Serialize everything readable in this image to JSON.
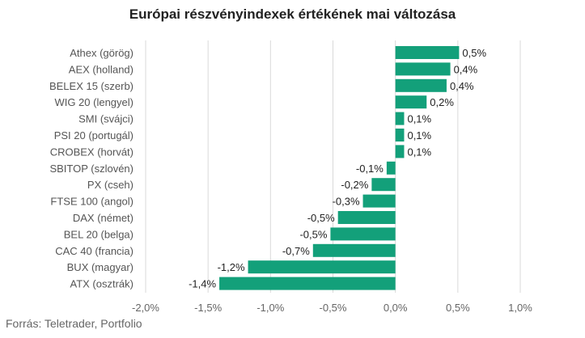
{
  "chart_data": {
    "type": "bar",
    "orientation": "horizontal",
    "title": "Európai részvényindexek értékének mai változása",
    "source": "Forrás: Teletrader, Portfolio",
    "categories": [
      "Athex (görög)",
      "AEX (holland)",
      "BELEX 15 (szerb)",
      "WIG 20 (lengyel)",
      "SMI (svájci)",
      "PSI 20 (portugál)",
      "CROBEX (horvát)",
      "SBITOP (szlovén)",
      "PX (cseh)",
      "FTSE 100 (angol)",
      "DAX (német)",
      "BEL 20 (belga)",
      "CAC 40 (francia)",
      "BUX (magyar)",
      "ATX (osztrák)"
    ],
    "values": [
      0.51,
      0.44,
      0.41,
      0.25,
      0.07,
      0.07,
      0.07,
      -0.07,
      -0.19,
      -0.26,
      -0.46,
      -0.52,
      -0.66,
      -1.18,
      -1.41
    ],
    "value_labels": [
      "0,5%",
      "0,4%",
      "0,4%",
      "0,2%",
      "0,1%",
      "0,1%",
      "0,1%",
      "-0,1%",
      "-0,2%",
      "-0,3%",
      "-0,5%",
      "-0,5%",
      "-0,7%",
      "-1,2%",
      "-1,4%"
    ],
    "xlim": [
      -2.0,
      1.0
    ],
    "xticks": [
      -2.0,
      -1.5,
      -1.0,
      -0.5,
      0.0,
      0.5,
      1.0
    ],
    "xtick_labels": [
      "-2,0%",
      "-1,5%",
      "-1,0%",
      "-0,5%",
      "0,0%",
      "0,5%",
      "1,0%"
    ],
    "grid": true,
    "bar_color": "#13a07a",
    "grid_color": "#d9d9d9"
  }
}
